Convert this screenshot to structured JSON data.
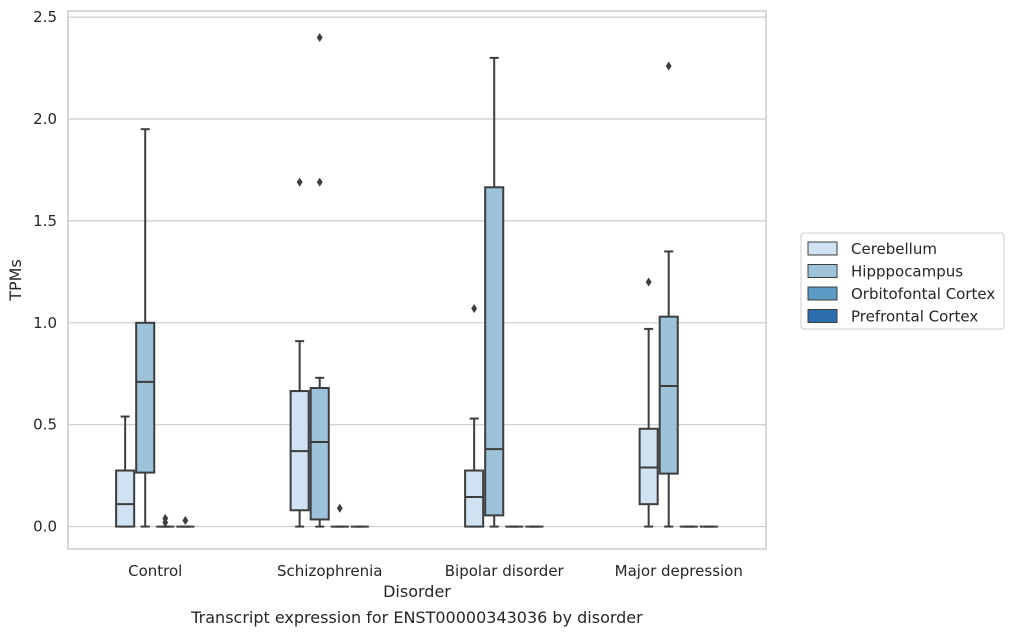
{
  "caption": "Transcript expression for ENST00000343036 by disorder",
  "chart_data": {
    "type": "box",
    "xlabel": "Disorder",
    "ylabel": "TPMs",
    "ylim": [
      -0.11,
      2.53
    ],
    "yticks": [
      0.0,
      0.5,
      1.0,
      1.5,
      2.0,
      2.5
    ],
    "ytick_labels": [
      "0.0",
      "0.5",
      "1.0",
      "1.5",
      "2.0",
      "2.5"
    ],
    "grid": "y",
    "legend_placement": "right",
    "categories": [
      "Control",
      "Schizophrenia",
      "Bipolar disorder",
      "Major depression"
    ],
    "series": [
      {
        "name": "Cerebellum",
        "color": "#d0e1f2",
        "boxes": [
          {
            "whislo": 0.0,
            "q1": 0.0,
            "med": 0.11,
            "q3": 0.275,
            "whishi": 0.54,
            "fliers": []
          },
          {
            "whislo": 0.0,
            "q1": 0.08,
            "med": 0.37,
            "q3": 0.665,
            "whishi": 0.91,
            "fliers": [
              1.69
            ]
          },
          {
            "whislo": 0.0,
            "q1": 0.0,
            "med": 0.145,
            "q3": 0.275,
            "whishi": 0.53,
            "fliers": [
              1.07
            ]
          },
          {
            "whislo": 0.0,
            "q1": 0.11,
            "med": 0.29,
            "q3": 0.48,
            "whishi": 0.97,
            "fliers": [
              1.2
            ]
          }
        ]
      },
      {
        "name": "Hipppocampus",
        "color": "#9dc3da",
        "boxes": [
          {
            "whislo": 0.0,
            "q1": 0.265,
            "med": 0.71,
            "q3": 1.0,
            "whishi": 1.95,
            "fliers": []
          },
          {
            "whislo": 0.0,
            "q1": 0.035,
            "med": 0.415,
            "q3": 0.68,
            "whishi": 0.73,
            "fliers": [
              1.69,
              2.4
            ]
          },
          {
            "whislo": 0.0,
            "q1": 0.055,
            "med": 0.38,
            "q3": 1.665,
            "whishi": 2.3,
            "fliers": []
          },
          {
            "whislo": 0.0,
            "q1": 0.26,
            "med": 0.69,
            "q3": 1.03,
            "whishi": 1.35,
            "fliers": [
              2.26
            ]
          }
        ]
      },
      {
        "name": "Orbitofontal Cortex",
        "color": "#5b9cc6",
        "boxes": [
          {
            "whislo": 0.0,
            "q1": 0.0,
            "med": 0.0,
            "q3": 0.0,
            "whishi": 0.0,
            "fliers": [
              0.02,
              0.04
            ]
          },
          {
            "whislo": 0.0,
            "q1": 0.0,
            "med": 0.0,
            "q3": 0.0,
            "whishi": 0.0,
            "fliers": [
              0.09
            ]
          },
          {
            "whislo": 0.0,
            "q1": 0.0,
            "med": 0.0,
            "q3": 0.0,
            "whishi": 0.0,
            "fliers": []
          },
          {
            "whislo": 0.0,
            "q1": 0.0,
            "med": 0.0,
            "q3": 0.0,
            "whishi": 0.0,
            "fliers": []
          }
        ]
      },
      {
        "name": "Prefrontal Cortex",
        "color": "#2d6fae",
        "boxes": [
          {
            "whislo": 0.0,
            "q1": 0.0,
            "med": 0.0,
            "q3": 0.0,
            "whishi": 0.0,
            "fliers": [
              0.03
            ]
          },
          {
            "whislo": 0.0,
            "q1": 0.0,
            "med": 0.0,
            "q3": 0.0,
            "whishi": 0.0,
            "fliers": []
          },
          {
            "whislo": 0.0,
            "q1": 0.0,
            "med": 0.0,
            "q3": 0.0,
            "whishi": 0.0,
            "fliers": []
          },
          {
            "whislo": 0.0,
            "q1": 0.0,
            "med": 0.0,
            "q3": 0.0,
            "whishi": 0.0,
            "fliers": []
          }
        ]
      }
    ]
  }
}
